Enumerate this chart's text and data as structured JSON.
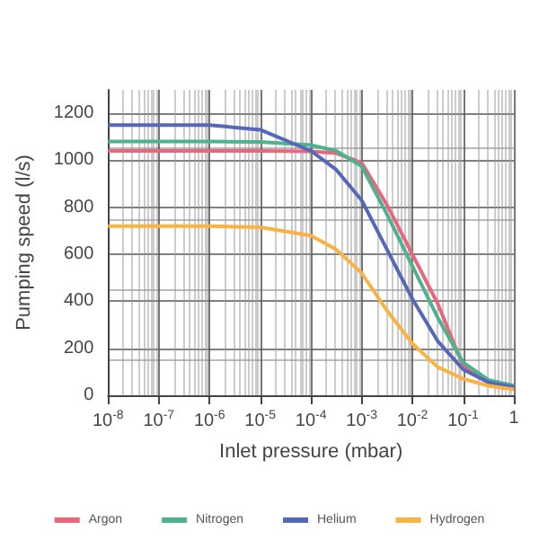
{
  "chart_data": {
    "type": "line",
    "xlabel": "Inlet pressure (mbar)",
    "ylabel": "Pumping speed (l/s)",
    "x": [
      1e-08,
      1e-07,
      1e-06,
      1e-05,
      0.0001,
      0.000316,
      0.001,
      0.00316,
      0.01,
      0.0316,
      0.1,
      0.316,
      1
    ],
    "series": [
      {
        "name": "Argon",
        "color": "#e8677a",
        "values": [
          1040,
          1040,
          1040,
          1040,
          1038,
          1030,
          990,
          810,
          600,
          390,
          125,
          60,
          40
        ]
      },
      {
        "name": "Nitrogen",
        "color": "#4fb28f",
        "values": [
          1080,
          1080,
          1080,
          1078,
          1065,
          1040,
          975,
          770,
          550,
          330,
          140,
          65,
          40
        ]
      },
      {
        "name": "Helium",
        "color": "#5567b8",
        "values": [
          1150,
          1150,
          1150,
          1130,
          1040,
          960,
          830,
          620,
          410,
          230,
          110,
          55,
          35
        ]
      },
      {
        "name": "Hydrogen",
        "color": "#f9b342",
        "values": [
          720,
          720,
          720,
          715,
          680,
          620,
          520,
          360,
          220,
          120,
          70,
          40,
          25
        ]
      }
    ],
    "xlim": [
      1e-08,
      1
    ],
    "ylim": [
      0,
      1300
    ],
    "xticks": [
      {
        "value": 1e-08,
        "label": "10$^{-8}$"
      },
      {
        "value": 1e-07,
        "label": "10$^{-7}$"
      },
      {
        "value": 1e-06,
        "label": "10$^{-6}$"
      },
      {
        "value": 1e-05,
        "label": "10$^{-5}$"
      },
      {
        "value": 0.0001,
        "label": "10$^{-4}$"
      },
      {
        "value": 0.001,
        "label": "10$^{-3}$"
      },
      {
        "value": 0.01,
        "label": "10$^{-2}$"
      },
      {
        "value": 0.1,
        "label": "10$^{-1}$"
      },
      1
    ],
    "yticks": [
      0,
      200,
      400,
      600,
      800,
      1000,
      1200
    ],
    "log": "x",
    "grid": true,
    "legend": "bottom",
    "marker": "none",
    "line_style": "solid"
  }
}
